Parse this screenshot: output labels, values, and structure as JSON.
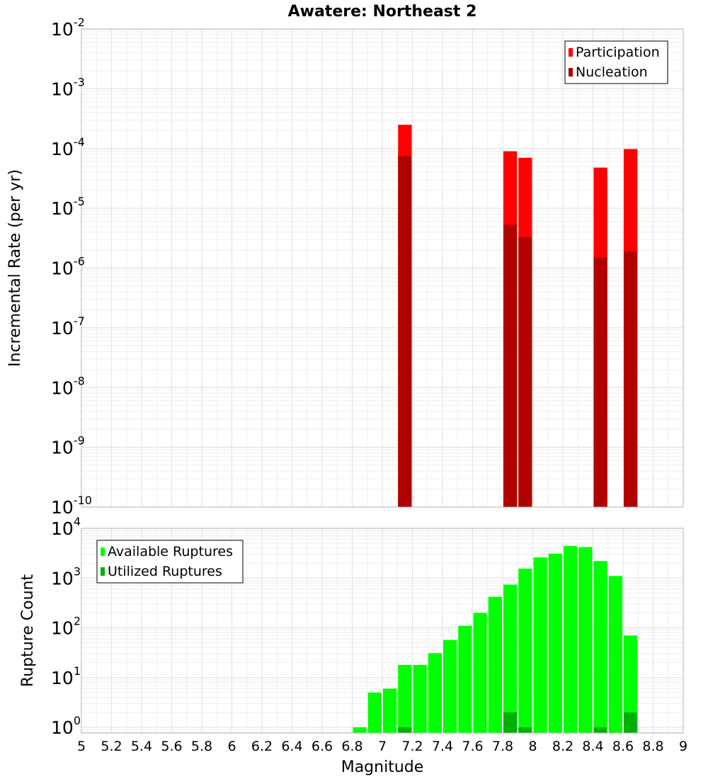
{
  "chart_data": {
    "type": "bar",
    "title": "Awatere: Northeast 2",
    "xlabel": "Magnitude",
    "x_ticks": [
      "5",
      "5.2",
      "5.4",
      "5.6",
      "5.8",
      "6",
      "6.2",
      "6.4",
      "6.6",
      "6.8",
      "7",
      "7.2",
      "7.4",
      "7.6",
      "7.8",
      "8",
      "8.2",
      "8.4",
      "8.6",
      "8.8",
      "9"
    ],
    "xlim": [
      5,
      9
    ],
    "bin_width": 0.1,
    "panels": [
      {
        "name": "rate",
        "ylabel": "Incremental Rate (per yr)",
        "yscale": "log",
        "ylim": [
          1e-10,
          0.01
        ],
        "y_ticks": [
          {
            "base": "10",
            "exp": "-10"
          },
          {
            "base": "10",
            "exp": "-9"
          },
          {
            "base": "10",
            "exp": "-8"
          },
          {
            "base": "10",
            "exp": "-7"
          },
          {
            "base": "10",
            "exp": "-6"
          },
          {
            "base": "10",
            "exp": "-5"
          },
          {
            "base": "10",
            "exp": "-4"
          },
          {
            "base": "10",
            "exp": "-3"
          },
          {
            "base": "10",
            "exp": "-2"
          }
        ],
        "legend_position": "top-right",
        "series": [
          {
            "name": "Participation",
            "color": "#ff0000",
            "x": [
              7.15,
              7.85,
              7.95,
              8.45,
              8.65
            ],
            "values": [
              0.00025,
              9e-05,
              7e-05,
              4.8e-05,
              9.8e-05
            ]
          },
          {
            "name": "Nucleation",
            "color": "#b00000",
            "x": [
              7.15,
              7.85,
              7.95,
              8.45,
              8.65
            ],
            "values": [
              7.5e-05,
              5.3e-06,
              3.3e-06,
              1.5e-06,
              1.9e-06
            ]
          }
        ]
      },
      {
        "name": "count",
        "ylabel": "Rupture Count",
        "yscale": "log",
        "ylim": [
          0.77,
          10000
        ],
        "y_ticks": [
          {
            "base": "10",
            "exp": "0"
          },
          {
            "base": "10",
            "exp": "1"
          },
          {
            "base": "10",
            "exp": "2"
          },
          {
            "base": "10",
            "exp": "3"
          },
          {
            "base": "10",
            "exp": "4"
          }
        ],
        "legend_position": "top-left",
        "series": [
          {
            "name": "Available Ruptures",
            "color": "#00ff00",
            "x": [
              6.85,
              6.95,
              7.05,
              7.15,
              7.25,
              7.35,
              7.45,
              7.55,
              7.65,
              7.75,
              7.85,
              7.95,
              8.05,
              8.15,
              8.25,
              8.35,
              8.45,
              8.55,
              8.65
            ],
            "values": [
              1,
              5,
              6,
              18,
              18,
              31,
              57,
              110,
              200,
              420,
              740,
              1550,
              2600,
              3100,
              4400,
              4200,
              2200,
              1100,
              70
            ]
          },
          {
            "name": "Utilized Ruptures",
            "color": "#00b000",
            "x": [
              7.15,
              7.85,
              7.95,
              8.45,
              8.65
            ],
            "values": [
              1,
              2,
              1,
              1,
              2
            ]
          }
        ]
      }
    ]
  }
}
